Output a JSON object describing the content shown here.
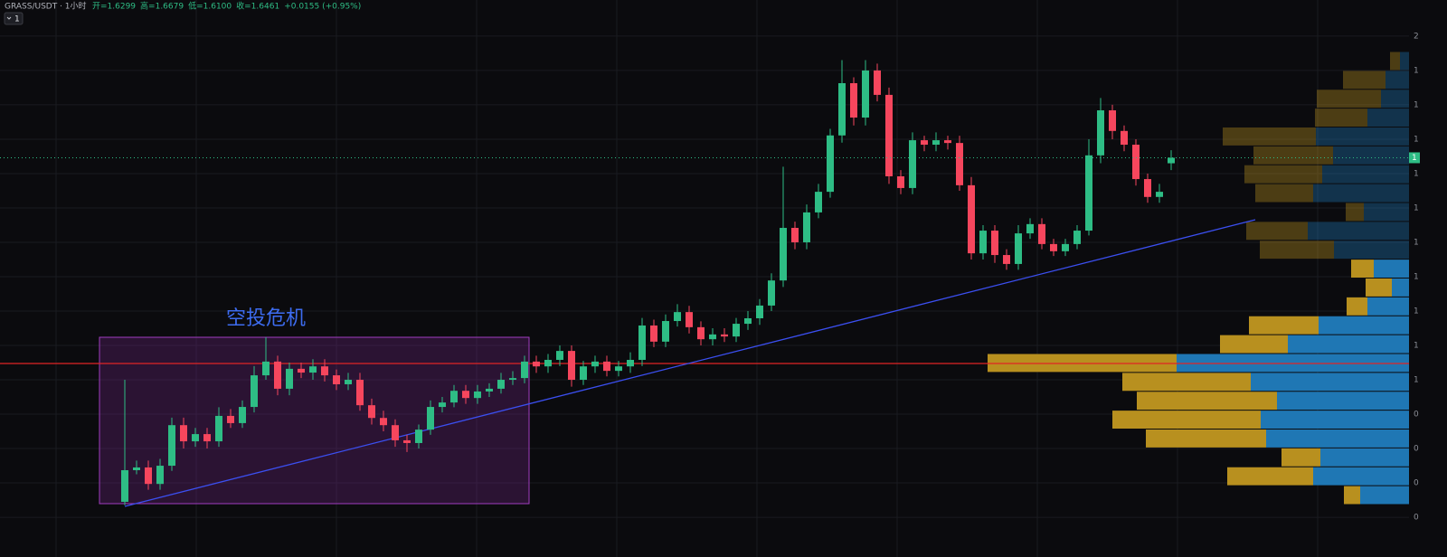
{
  "chart_data": {
    "type": "candlestick",
    "symbol": "GRASS/USDT · 1小时",
    "header_values": [
      "开=1.6299",
      "高=1.6679",
      "低=1.6100",
      "收=1.6461",
      "+0.0155 (+0.95%)"
    ],
    "interval_button": "1",
    "annotation": "空投危机",
    "last_price_label": "1",
    "up_color": "#2ebd85",
    "down_color": "#f6465d",
    "ylim": [
      0.516,
      2.105
    ],
    "yticks": [
      {
        "value": 2.0,
        "label": "2"
      },
      {
        "value": 1.9,
        "label": "1"
      },
      {
        "value": 1.8,
        "label": "1"
      },
      {
        "value": 1.7,
        "label": "1"
      },
      {
        "value": 1.6,
        "label": "1"
      },
      {
        "value": 1.5,
        "label": "1"
      },
      {
        "value": 1.4,
        "label": "1"
      },
      {
        "value": 1.3,
        "label": "1"
      },
      {
        "value": 1.2,
        "label": "1"
      },
      {
        "value": 1.1,
        "label": "1"
      },
      {
        "value": 1.0,
        "label": "1"
      },
      {
        "value": 0.9,
        "label": "0"
      },
      {
        "value": 0.8,
        "label": "0"
      },
      {
        "value": 0.7,
        "label": "0"
      },
      {
        "value": 0.6,
        "label": "0"
      }
    ],
    "grid": true,
    "open": [
      0.645,
      0.737,
      0.745,
      0.697,
      0.75,
      0.868,
      0.821,
      0.842,
      0.821,
      0.895,
      0.874,
      0.921,
      1.013,
      1.053,
      0.974,
      1.032,
      1.021,
      1.039,
      1.013,
      0.987,
      1.0,
      0.926,
      0.889,
      0.868,
      0.824,
      0.816,
      0.855,
      0.921,
      0.934,
      0.968,
      0.947,
      0.966,
      0.974,
      1.0,
      1.005,
      1.053,
      1.039,
      1.058,
      1.084,
      1.0,
      1.039,
      1.053,
      1.026,
      1.039,
      1.058,
      1.158,
      1.111,
      1.171,
      1.197,
      1.153,
      1.118,
      1.132,
      1.126,
      1.163,
      1.179,
      1.216,
      1.289,
      1.442,
      1.4,
      1.487,
      1.547,
      1.711,
      1.863,
      1.763,
      1.9,
      1.829,
      1.592,
      1.558,
      1.697,
      1.684,
      1.697,
      1.689,
      1.566,
      1.368,
      1.434,
      1.363,
      1.337,
      1.426,
      1.453,
      1.395,
      1.374,
      1.395,
      1.434,
      1.653,
      1.784,
      1.724,
      1.684,
      1.584,
      1.532,
      1.63
    ],
    "high": [
      1.0,
      0.765,
      0.765,
      0.77,
      0.89,
      0.89,
      0.86,
      0.86,
      0.92,
      0.915,
      0.94,
      1.04,
      1.124,
      1.07,
      1.05,
      1.05,
      1.06,
      1.06,
      1.03,
      1.02,
      1.02,
      0.945,
      0.91,
      0.885,
      0.84,
      0.87,
      0.94,
      0.95,
      0.985,
      0.985,
      0.985,
      0.99,
      1.02,
      1.025,
      1.07,
      1.07,
      1.075,
      1.1,
      1.1,
      1.055,
      1.07,
      1.07,
      1.055,
      1.08,
      1.18,
      1.175,
      1.19,
      1.22,
      1.215,
      1.17,
      1.15,
      1.15,
      1.18,
      1.2,
      1.235,
      1.31,
      1.62,
      1.46,
      1.51,
      1.57,
      1.73,
      1.93,
      1.88,
      1.93,
      1.92,
      1.85,
      1.61,
      1.72,
      1.71,
      1.72,
      1.71,
      1.71,
      1.59,
      1.45,
      1.45,
      1.38,
      1.45,
      1.47,
      1.47,
      1.41,
      1.41,
      1.45,
      1.7,
      1.82,
      1.8,
      1.74,
      1.7,
      1.6,
      1.57,
      1.668
    ],
    "low": [
      0.635,
      0.725,
      0.68,
      0.68,
      0.735,
      0.8,
      0.805,
      0.8,
      0.805,
      0.86,
      0.86,
      0.905,
      1.0,
      0.955,
      0.955,
      1.005,
      1.0,
      0.995,
      0.97,
      0.97,
      0.91,
      0.87,
      0.85,
      0.805,
      0.79,
      0.8,
      0.84,
      0.905,
      0.92,
      0.93,
      0.93,
      0.95,
      0.96,
      0.985,
      0.99,
      1.02,
      1.02,
      1.04,
      0.98,
      0.985,
      1.02,
      1.01,
      1.01,
      1.02,
      1.04,
      1.095,
      1.095,
      1.155,
      1.135,
      1.1,
      1.1,
      1.11,
      1.11,
      1.145,
      1.16,
      1.2,
      1.27,
      1.38,
      1.38,
      1.47,
      1.53,
      1.69,
      1.74,
      1.74,
      1.81,
      1.57,
      1.54,
      1.54,
      1.665,
      1.665,
      1.67,
      1.55,
      1.35,
      1.35,
      1.34,
      1.32,
      1.32,
      1.41,
      1.38,
      1.36,
      1.36,
      1.38,
      1.42,
      1.63,
      1.7,
      1.665,
      1.565,
      1.515,
      1.515,
      1.61
    ],
    "close": [
      0.737,
      0.745,
      0.697,
      0.75,
      0.868,
      0.821,
      0.842,
      0.821,
      0.895,
      0.874,
      0.921,
      1.013,
      1.053,
      0.974,
      1.032,
      1.021,
      1.039,
      1.013,
      0.987,
      1.0,
      0.926,
      0.889,
      0.868,
      0.824,
      0.816,
      0.855,
      0.921,
      0.934,
      0.968,
      0.947,
      0.966,
      0.974,
      1.0,
      1.005,
      1.053,
      1.039,
      1.058,
      1.084,
      1.0,
      1.039,
      1.053,
      1.026,
      1.039,
      1.058,
      1.158,
      1.111,
      1.171,
      1.197,
      1.153,
      1.118,
      1.132,
      1.126,
      1.163,
      1.179,
      1.216,
      1.289,
      1.442,
      1.4,
      1.487,
      1.547,
      1.711,
      1.863,
      1.763,
      1.9,
      1.829,
      1.592,
      1.558,
      1.697,
      1.684,
      1.697,
      1.689,
      1.566,
      1.368,
      1.434,
      1.363,
      1.337,
      1.426,
      1.453,
      1.395,
      1.374,
      1.395,
      1.434,
      1.653,
      1.784,
      1.724,
      1.684,
      1.584,
      1.532,
      1.547,
      1.646
    ],
    "volume_profile": {
      "colors": [
        "#b8901f",
        "#1f77b4"
      ],
      "values": [
        [
          11,
          10
        ],
        [
          47,
          26
        ],
        [
          71,
          31
        ],
        [
          58,
          46
        ],
        [
          103,
          103
        ],
        [
          88,
          84
        ],
        [
          86,
          96
        ],
        [
          64,
          106
        ],
        [
          20,
          50
        ],
        [
          68,
          112
        ],
        [
          82,
          83
        ],
        [
          25,
          39
        ],
        [
          29,
          19
        ],
        [
          23,
          46
        ],
        [
          77,
          100
        ],
        [
          75,
          134
        ],
        [
          209,
          257
        ],
        [
          142,
          175
        ],
        [
          155,
          146
        ],
        [
          164,
          164
        ],
        [
          133,
          158
        ],
        [
          43,
          98
        ],
        [
          95,
          106
        ],
        [
          18,
          54
        ]
      ]
    }
  }
}
